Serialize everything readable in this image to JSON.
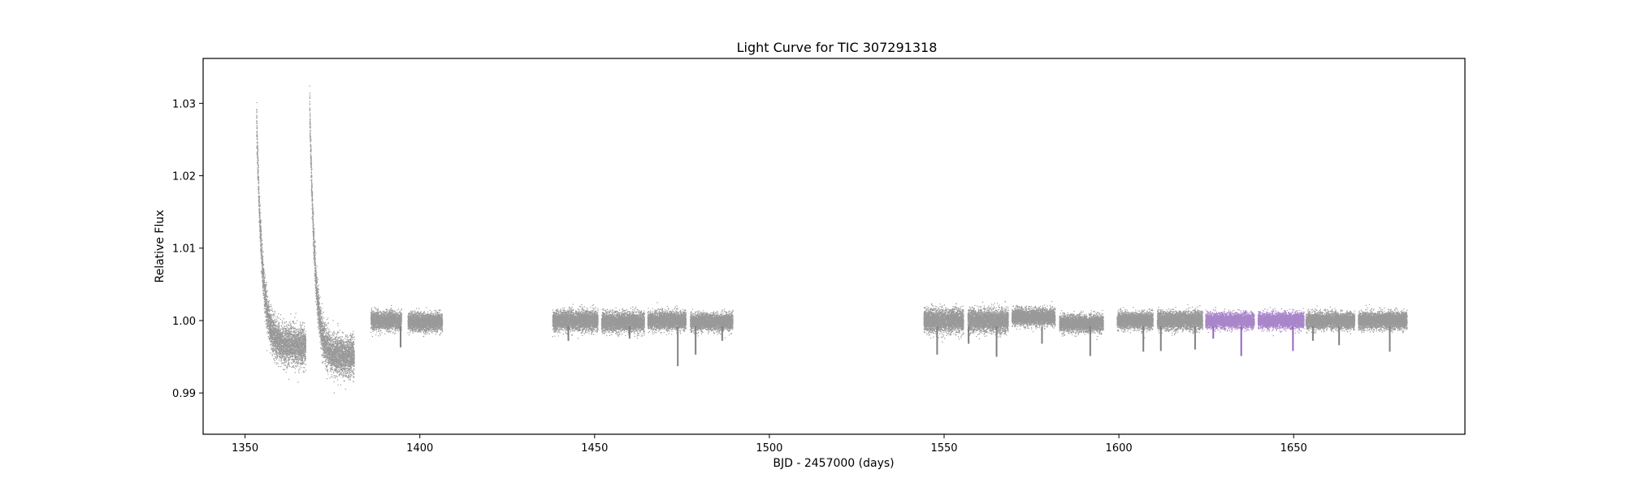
{
  "chart_data": {
    "type": "scatter",
    "title": "Light Curve for TIC 307291318",
    "xlabel": "BJD - 2457000 (days)",
    "ylabel": "Relative Flux",
    "xlim": [
      1338,
      1699
    ],
    "ylim": [
      0.9843,
      1.0362
    ],
    "xticks": [
      1350,
      1400,
      1450,
      1500,
      1550,
      1600,
      1650
    ],
    "yticks": [
      0.99,
      1.0,
      1.01,
      1.02,
      1.03
    ],
    "xtick_labels": [
      "1350",
      "1400",
      "1450",
      "1500",
      "1550",
      "1600",
      "1650"
    ],
    "ytick_labels": [
      "0.99",
      "1.00",
      "1.01",
      "1.02",
      "1.03"
    ],
    "grid": false,
    "colors": {
      "base": "#808080",
      "highlight": "#9467bd"
    },
    "series": [
      {
        "color": "#808080",
        "segments": [
          {
            "shape": "decay",
            "start": 1353.3,
            "end": 1367.4,
            "peak": 1.028,
            "floor": 0.9965,
            "tau": 1.6,
            "scatter": 0.0026
          },
          {
            "shape": "decay",
            "start": 1368.5,
            "end": 1381.3,
            "peak": 1.03,
            "floor": 0.995,
            "tau": 1.5,
            "scatter": 0.0026
          },
          {
            "shape": "flat",
            "start": 1386.0,
            "end": 1394.8,
            "level": 1.0,
            "scatter": 0.0012
          },
          {
            "shape": "flat",
            "start": 1396.6,
            "end": 1406.5,
            "level": 0.9998,
            "scatter": 0.0012
          },
          {
            "shape": "flat",
            "start": 1438.0,
            "end": 1451.0,
            "level": 1.0,
            "scatter": 0.0013
          },
          {
            "shape": "flat",
            "start": 1452.0,
            "end": 1464.3,
            "level": 0.9998,
            "scatter": 0.0013
          },
          {
            "shape": "flat",
            "start": 1465.2,
            "end": 1476.2,
            "level": 1.0,
            "scatter": 0.0012
          },
          {
            "shape": "flat",
            "start": 1477.4,
            "end": 1489.6,
            "level": 0.9998,
            "scatter": 0.0011
          },
          {
            "shape": "flat",
            "start": 1544.2,
            "end": 1555.6,
            "level": 1.0,
            "scatter": 0.0015
          },
          {
            "shape": "flat",
            "start": 1556.8,
            "end": 1568.4,
            "level": 1.0,
            "scatter": 0.0015
          },
          {
            "shape": "flat",
            "start": 1569.4,
            "end": 1581.8,
            "level": 1.0005,
            "scatter": 0.0011
          },
          {
            "shape": "flat",
            "start": 1583.0,
            "end": 1595.6,
            "level": 0.9996,
            "scatter": 0.0011
          },
          {
            "shape": "flat",
            "start": 1599.5,
            "end": 1609.8,
            "level": 1.0,
            "scatter": 0.0011
          },
          {
            "shape": "flat",
            "start": 1611.0,
            "end": 1624.0,
            "level": 1.0,
            "scatter": 0.0012
          },
          {
            "shape": "flat",
            "start": 1653.5,
            "end": 1667.5,
            "level": 1.0,
            "scatter": 0.0011
          },
          {
            "shape": "flat",
            "start": 1668.5,
            "end": 1682.5,
            "level": 1.0,
            "scatter": 0.0011
          }
        ]
      },
      {
        "color": "#9467bd",
        "segments": [
          {
            "shape": "flat",
            "start": 1624.8,
            "end": 1638.8,
            "level": 1.0,
            "scatter": 0.001
          },
          {
            "shape": "flat",
            "start": 1639.8,
            "end": 1653.0,
            "level": 1.0,
            "scatter": 0.001
          }
        ]
      }
    ],
    "dips": [
      {
        "x": 1394.5,
        "y": 0.9963
      },
      {
        "x": 1442.5,
        "y": 0.9972
      },
      {
        "x": 1460.0,
        "y": 0.9975
      },
      {
        "x": 1473.8,
        "y": 0.9937
      },
      {
        "x": 1478.9,
        "y": 0.9953
      },
      {
        "x": 1486.5,
        "y": 0.9972
      },
      {
        "x": 1548.0,
        "y": 0.9953
      },
      {
        "x": 1557.0,
        "y": 0.9968
      },
      {
        "x": 1565.0,
        "y": 0.995
      },
      {
        "x": 1578.0,
        "y": 0.9968
      },
      {
        "x": 1591.8,
        "y": 0.9951
      },
      {
        "x": 1607.0,
        "y": 0.9957
      },
      {
        "x": 1612.0,
        "y": 0.9958
      },
      {
        "x": 1621.8,
        "y": 0.996
      },
      {
        "x": 1627.0,
        "y": 0.9975
      },
      {
        "x": 1635.0,
        "y": 0.9951
      },
      {
        "x": 1649.8,
        "y": 0.9958
      },
      {
        "x": 1655.5,
        "y": 0.9972
      },
      {
        "x": 1663.0,
        "y": 0.9966
      },
      {
        "x": 1677.5,
        "y": 0.9957
      }
    ]
  }
}
